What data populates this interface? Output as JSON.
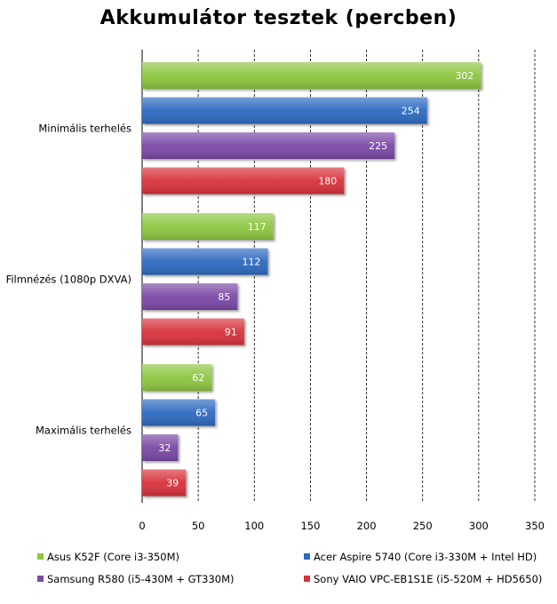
{
  "chart_data": {
    "type": "bar",
    "orientation": "horizontal",
    "title": "Akkumulátor tesztek (percben)",
    "categories": [
      "Minimális terhelés",
      "Filmnézés (1080p DXVA)",
      "Maximális terhelés"
    ],
    "series": [
      {
        "name": "Asus K52F (Core i3-350M)",
        "color": "#8dc63f",
        "values": [
          302,
          117,
          62
        ]
      },
      {
        "name": "Acer Aspire 5740 (Core i3-330M + Intel HD)",
        "color": "#2e6bc0",
        "values": [
          254,
          112,
          65
        ]
      },
      {
        "name": "Samsung R580 (i5-430M + GT330M)",
        "color": "#7a4aa6",
        "values": [
          225,
          85,
          32
        ]
      },
      {
        "name": "Sony VAIO VPC-EB1S1E (i5-520M + HD5650)",
        "color": "#d8333a",
        "values": [
          180,
          91,
          39
        ]
      }
    ],
    "xlim": [
      0,
      350
    ],
    "xticks": [
      0,
      50,
      100,
      150,
      200,
      250,
      300,
      350
    ],
    "grid": true,
    "legend_position": "bottom"
  }
}
